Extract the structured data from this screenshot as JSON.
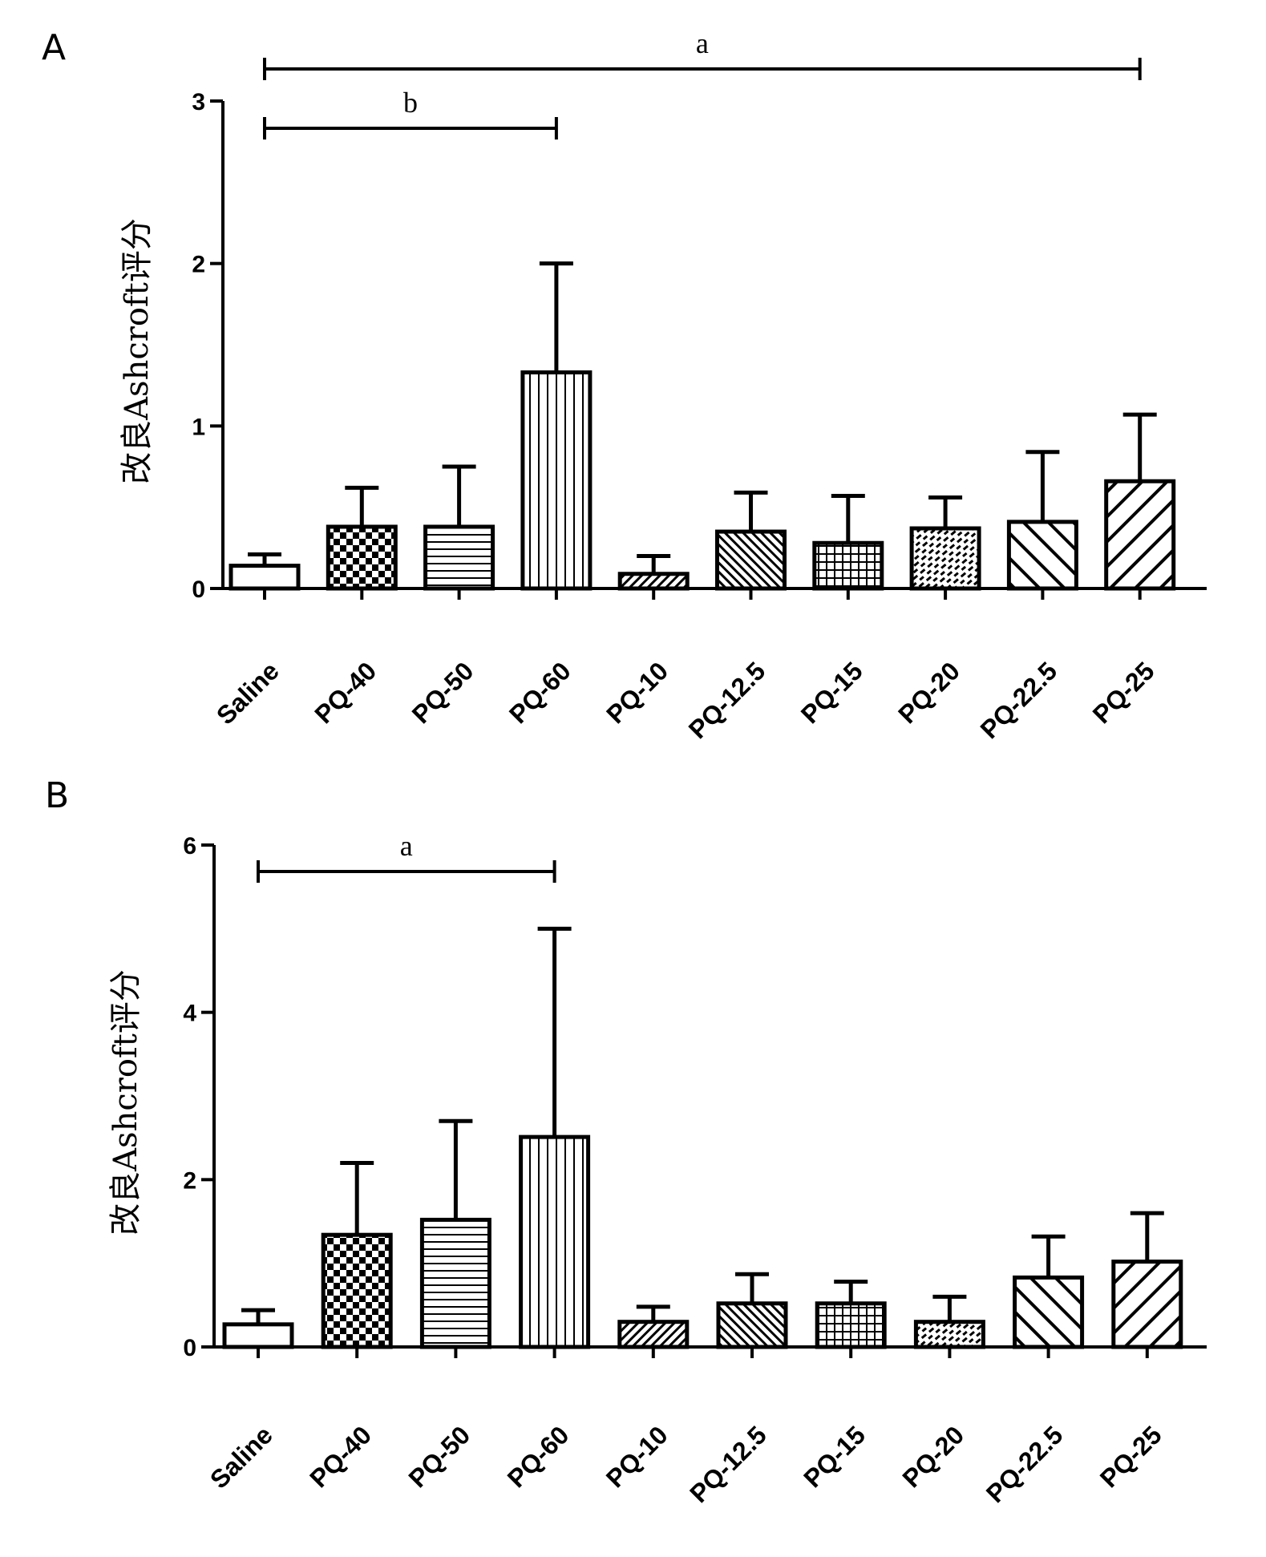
{
  "chart_data": [
    {
      "panel": "A",
      "type": "bar",
      "ylabel": "改良Ashcroft评分",
      "xlabel": "",
      "ylim": [
        0,
        3
      ],
      "yticks": [
        "0",
        "1",
        "2",
        "3"
      ],
      "categories": [
        "Saline",
        "PQ-40",
        "PQ-50",
        "PQ-60",
        "PQ-10",
        "PQ-12.5",
        "PQ-15",
        "PQ-20",
        "PQ-22.5",
        "PQ-25"
      ],
      "values": [
        0.14,
        0.38,
        0.38,
        1.33,
        0.09,
        0.35,
        0.28,
        0.37,
        0.41,
        0.66
      ],
      "errors": [
        0.07,
        0.24,
        0.37,
        0.67,
        0.11,
        0.24,
        0.29,
        0.19,
        0.43,
        0.41
      ],
      "significance": [
        {
          "label": "a",
          "from": "Saline",
          "to": "PQ-25"
        },
        {
          "label": "b",
          "from": "Saline",
          "to": "PQ-60"
        }
      ]
    },
    {
      "panel": "B",
      "type": "bar",
      "ylabel": "改良Ashcroft评分",
      "xlabel": "",
      "ylim": [
        0,
        6
      ],
      "yticks": [
        "0",
        "2",
        "4",
        "6"
      ],
      "categories": [
        "Saline",
        "PQ-40",
        "PQ-50",
        "PQ-60",
        "PQ-10",
        "PQ-12.5",
        "PQ-15",
        "PQ-20",
        "PQ-22.5",
        "PQ-25"
      ],
      "values": [
        0.27,
        1.34,
        1.52,
        2.51,
        0.3,
        0.52,
        0.52,
        0.3,
        0.83,
        1.02
      ],
      "errors": [
        0.17,
        0.86,
        1.18,
        2.49,
        0.18,
        0.35,
        0.26,
        0.3,
        0.49,
        0.58
      ],
      "significance": [
        {
          "label": "a",
          "from": "Saline",
          "to": "PQ-60"
        }
      ]
    }
  ]
}
